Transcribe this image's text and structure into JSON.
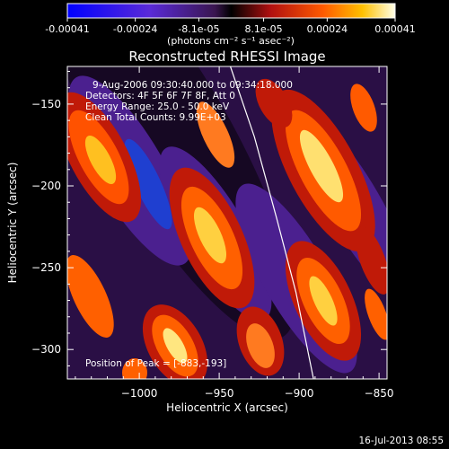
{
  "colorbar": {
    "ticks": [
      "-0.00041",
      "-0.00024",
      "-8.1e-05",
      "8.1e-05",
      "0.00024",
      "0.00041"
    ],
    "tick_values": [
      -0.00041,
      -0.00024,
      -8.1e-05,
      8.1e-05,
      0.00024,
      0.00041
    ],
    "units": "(photons cm⁻² s⁻¹ asec⁻²)",
    "range": [
      -0.00041,
      0.00041
    ]
  },
  "chart_data": {
    "type": "heatmap",
    "title": "Reconstructed RHESSI Image",
    "xlabel": "Heliocentric X (arcsec)",
    "ylabel": "Heliocentric Y (arcsec)",
    "xlim": [
      -1045,
      -845
    ],
    "ylim": [
      -318,
      -127
    ],
    "x_ticks": [
      -1000,
      -950,
      -900,
      -850
    ],
    "y_ticks": [
      -150,
      -200,
      -250,
      -300
    ],
    "annotations": [
      "9-Aug-2006 09:30:40.000 to 09:34:18.000",
      "Detectors: 4F 5F 6F 7F 8F, Att 0",
      "Energy Range: 25.0 - 50.0 keV",
      "Clean     Total Counts: 9.99E+03"
    ],
    "peak_label": "Position of Peak = [-883,-193]",
    "peak": [
      -883,
      -193
    ],
    "limb_curve": [
      [
        -943,
        -127
      ],
      [
        -928,
        -170
      ],
      [
        -914,
        -220
      ],
      [
        -902,
        -265
      ],
      [
        -891,
        -318
      ]
    ]
  },
  "footer": {
    "timestamp": "16-Jul-2013 08:55"
  }
}
